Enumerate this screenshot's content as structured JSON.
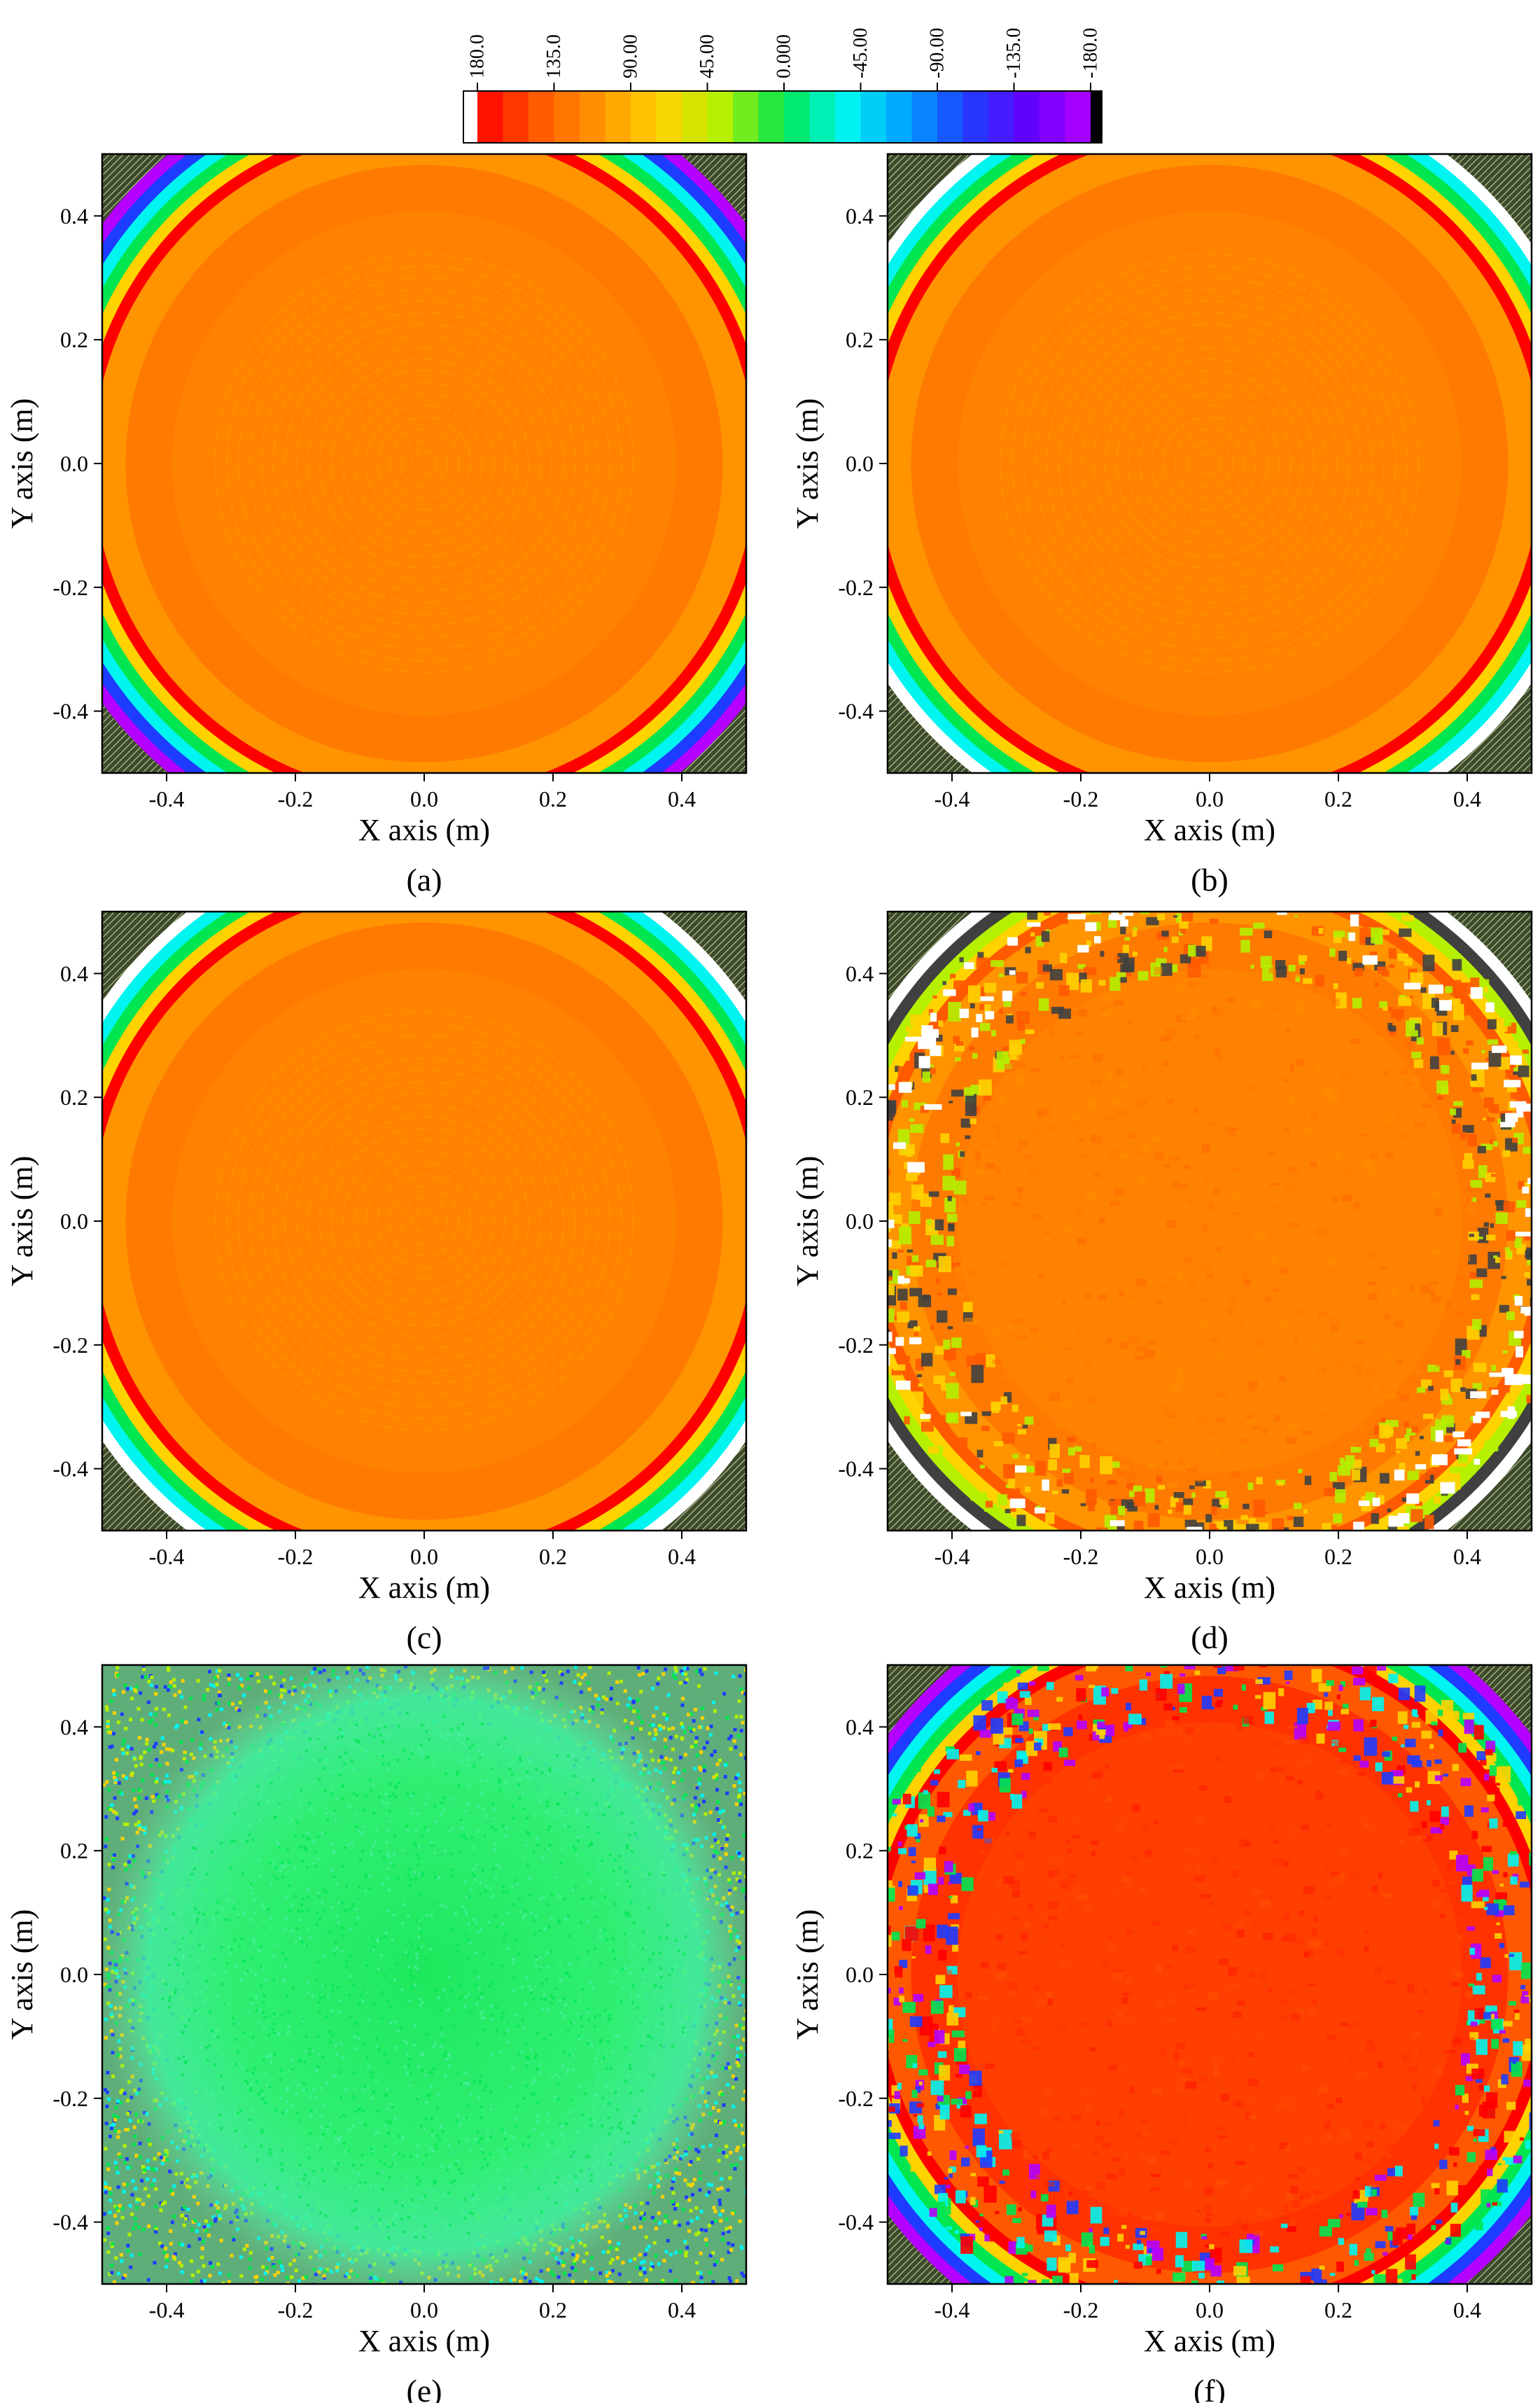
{
  "colorbar": {
    "ticks": [
      "180.0",
      "135.0",
      "90.00",
      "45.00",
      "0.000",
      "-45.00",
      "-90.00",
      "-135.0",
      "-180.0"
    ],
    "range": [
      180,
      -180
    ],
    "colors": [
      "#ff0000",
      "#ff5a00",
      "#ff9600",
      "#ffd200",
      "#b4f000",
      "#00e650",
      "#00f5f0",
      "#00a0ff",
      "#1e3cff",
      "#6400ff",
      "#b400ff"
    ],
    "under_color": "#ffffff",
    "over_color": "#000000"
  },
  "chart_data": [
    {
      "type": "heatmap",
      "label": "(a)",
      "xlabel": "X axis (m)",
      "ylabel": "Y axis (m)",
      "xlim": [
        -0.5,
        0.5
      ],
      "ylim": [
        -0.5,
        0.5
      ],
      "xticks": [
        "-0.4",
        "-0.2",
        "0.0",
        "0.2",
        "0.4"
      ],
      "yticks": [
        "0.4",
        "0.2",
        "0.0",
        "-0.2",
        "-0.4"
      ],
      "pattern": "smooth",
      "center_phase": 125,
      "edge_phase": -170,
      "rings": true,
      "edge_colors": [
        "#ff0000",
        "#ffd200",
        "#00e650",
        "#00f5f0",
        "#1e3cff",
        "#b400ff"
      ],
      "edge_white": false
    },
    {
      "type": "heatmap",
      "label": "(b)",
      "xlabel": "X axis (m)",
      "ylabel": "Y axis (m)",
      "xlim": [
        -0.5,
        0.5
      ],
      "ylim": [
        -0.5,
        0.5
      ],
      "xticks": [
        "-0.4",
        "-0.2",
        "0.0",
        "0.2",
        "0.4"
      ],
      "yticks": [
        "0.4",
        "0.2",
        "0.0",
        "-0.2",
        "-0.4"
      ],
      "pattern": "smooth",
      "center_phase": 125,
      "edge_phase": 180,
      "rings": true,
      "edge_colors": [
        "#ff0000",
        "#ffd200",
        "#00e650",
        "#00f5f0"
      ],
      "edge_white": true
    },
    {
      "type": "heatmap",
      "label": "(c)",
      "xlabel": "X axis (m)",
      "ylabel": "Y axis (m)",
      "xlim": [
        -0.5,
        0.5
      ],
      "ylim": [
        -0.5,
        0.5
      ],
      "xticks": [
        "-0.4",
        "-0.2",
        "0.0",
        "0.2",
        "0.4"
      ],
      "yticks": [
        "0.4",
        "0.2",
        "0.0",
        "-0.2",
        "-0.4"
      ],
      "pattern": "smooth",
      "center_phase": 125,
      "edge_phase": 180,
      "rings": true,
      "edge_colors": [
        "#ff0000",
        "#ffd200",
        "#00e650",
        "#00f5f0"
      ],
      "edge_white": true
    },
    {
      "type": "heatmap",
      "label": "(d)",
      "xlabel": "X axis (m)",
      "ylabel": "Y axis (m)",
      "xlim": [
        -0.5,
        0.5
      ],
      "ylim": [
        -0.5,
        0.5
      ],
      "xticks": [
        "-0.4",
        "-0.2",
        "0.0",
        "0.2",
        "0.4"
      ],
      "yticks": [
        "0.4",
        "0.2",
        "0.0",
        "-0.2",
        "-0.4"
      ],
      "pattern": "speckled",
      "center_phase": 125,
      "edge_phase": 90,
      "rings": false,
      "edge_colors": [
        "#ff5a00",
        "#ffd200",
        "#b4f000",
        "#404040"
      ],
      "edge_white": true
    },
    {
      "type": "heatmap",
      "label": "(e)",
      "xlabel": "X axis (m)",
      "ylabel": "Y axis (m)",
      "xlim": [
        -0.5,
        0.5
      ],
      "ylim": [
        -0.5,
        0.5
      ],
      "xticks": [
        "-0.4",
        "-0.2",
        "0.0",
        "0.2",
        "0.4"
      ],
      "yticks": [
        "0.4",
        "0.2",
        "0.0",
        "-0.2",
        "-0.4"
      ],
      "pattern": "noise",
      "center_phase": 20,
      "edge_phase": 0,
      "rings": false,
      "edge_colors": [
        "#00e650",
        "#ffd200",
        "#1e3cff",
        "#00f5f0",
        "#b4f000"
      ],
      "edge_white": false
    },
    {
      "type": "heatmap",
      "label": "(f)",
      "xlabel": "X axis (m)",
      "ylabel": "Y axis (m)",
      "xlim": [
        -0.5,
        0.5
      ],
      "ylim": [
        -0.5,
        0.5
      ],
      "xticks": [
        "-0.4",
        "-0.2",
        "0.0",
        "0.2",
        "0.4"
      ],
      "yticks": [
        "0.4",
        "0.2",
        "0.0",
        "-0.2",
        "-0.4"
      ],
      "pattern": "speckled",
      "center_phase": 160,
      "edge_phase": -60,
      "rings": false,
      "edge_colors": [
        "#ff0000",
        "#ffd200",
        "#00e650",
        "#00f5f0",
        "#1e3cff",
        "#b400ff"
      ],
      "edge_white": false
    }
  ]
}
